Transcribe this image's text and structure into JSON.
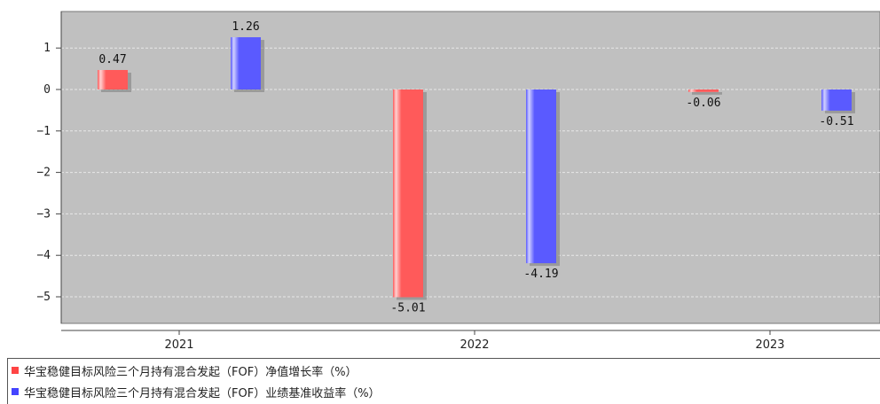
{
  "chart_data": {
    "type": "bar",
    "title": "",
    "categories": [
      "2021",
      "2022",
      "2023"
    ],
    "series": [
      {
        "name": "华宝稳健目标风险三个月持有混合发起（FOF）净值增长率（%）",
        "color": "#ff5a5a",
        "values": [
          0.47,
          -5.01,
          -0.06
        ],
        "labels": [
          "0.47",
          "-5.01",
          "-0.06"
        ]
      },
      {
        "name": "华宝稳健目标风险三个月持有混合发起（FOF）业绩基准收益率（%）",
        "color": "#5a5aff",
        "values": [
          1.26,
          -4.19,
          -0.51
        ],
        "labels": [
          "1.26",
          "-4.19",
          "-0.51"
        ]
      }
    ],
    "yticks": [
      "1",
      "0",
      "-1",
      "-2",
      "-3",
      "-4",
      "-5"
    ],
    "ylim": [
      -5.5,
      1.85
    ],
    "grid": true,
    "plot_background": "#c0c0c0",
    "legend_position": "bottom"
  }
}
